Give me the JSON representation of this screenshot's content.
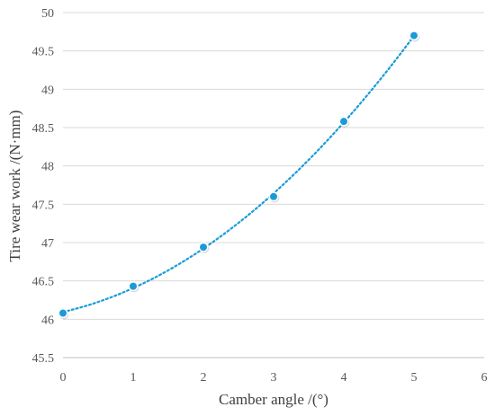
{
  "chart_data": {
    "type": "scatter",
    "xlabel": "Camber angle /(°)",
    "ylabel": "Tire wear work /(N·mm)",
    "xlim": [
      0,
      6
    ],
    "ylim": [
      45.5,
      50
    ],
    "x_ticks": [
      "0",
      "1",
      "2",
      "3",
      "4",
      "5",
      "6"
    ],
    "y_ticks": [
      "45.5",
      "46",
      "46.5",
      "47",
      "47.5",
      "48",
      "48.5",
      "49",
      "49.5",
      "50"
    ],
    "grid": "horizontal",
    "series": [
      {
        "x": [
          0,
          1,
          2,
          3,
          4,
          5
        ],
        "y": [
          46.08,
          46.43,
          46.94,
          47.6,
          48.58,
          49.7
        ]
      }
    ],
    "trendline": "polynomial, dotted",
    "colors": {
      "series": "#1a9bd7",
      "grid": "#d9d9d9",
      "axis": "#bfbfbf",
      "text": "#595959"
    }
  }
}
